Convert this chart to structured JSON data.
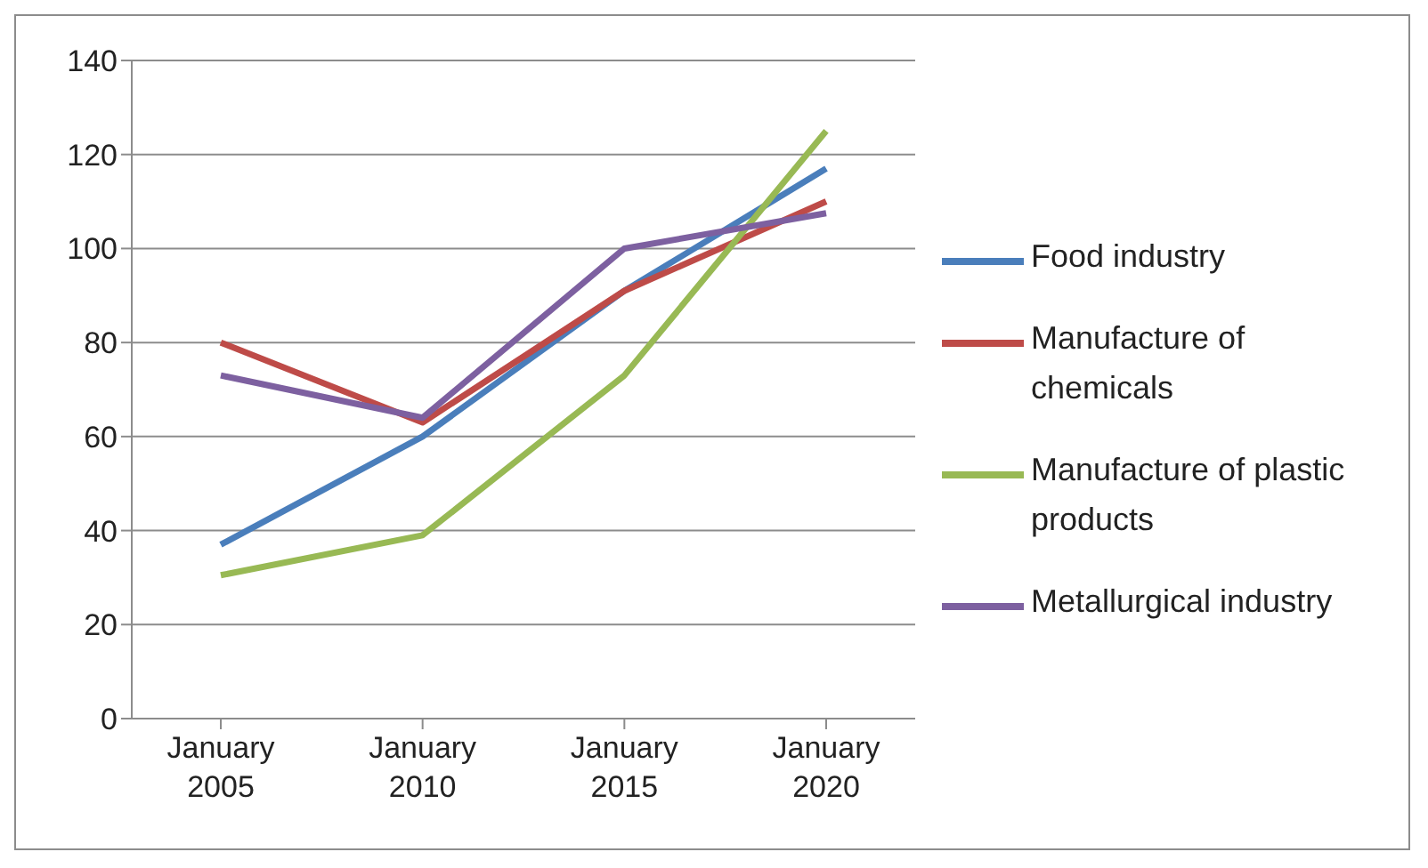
{
  "chart_data": {
    "type": "line",
    "categories": [
      "January 2005",
      "January 2010",
      "January 2015",
      "January 2020"
    ],
    "series": [
      {
        "name": "Food industry",
        "color": "#4a7ebb",
        "values": [
          37,
          60,
          91,
          117
        ]
      },
      {
        "name": "Manufacture of chemicals",
        "color": "#be4b48",
        "values": [
          80,
          63,
          91,
          110
        ]
      },
      {
        "name": "Manufacture of plastic products",
        "color": "#98b954",
        "values": [
          30.5,
          39,
          73,
          125
        ]
      },
      {
        "name": "Metallurgical industry",
        "color": "#7d60a0",
        "values": [
          73,
          64,
          100,
          107.5
        ]
      }
    ],
    "ylim": [
      0,
      140
    ],
    "yticks": [
      0,
      20,
      40,
      60,
      80,
      100,
      120,
      140
    ],
    "grid": "y",
    "legend": "right",
    "marker": "none",
    "line_style": "solid"
  }
}
